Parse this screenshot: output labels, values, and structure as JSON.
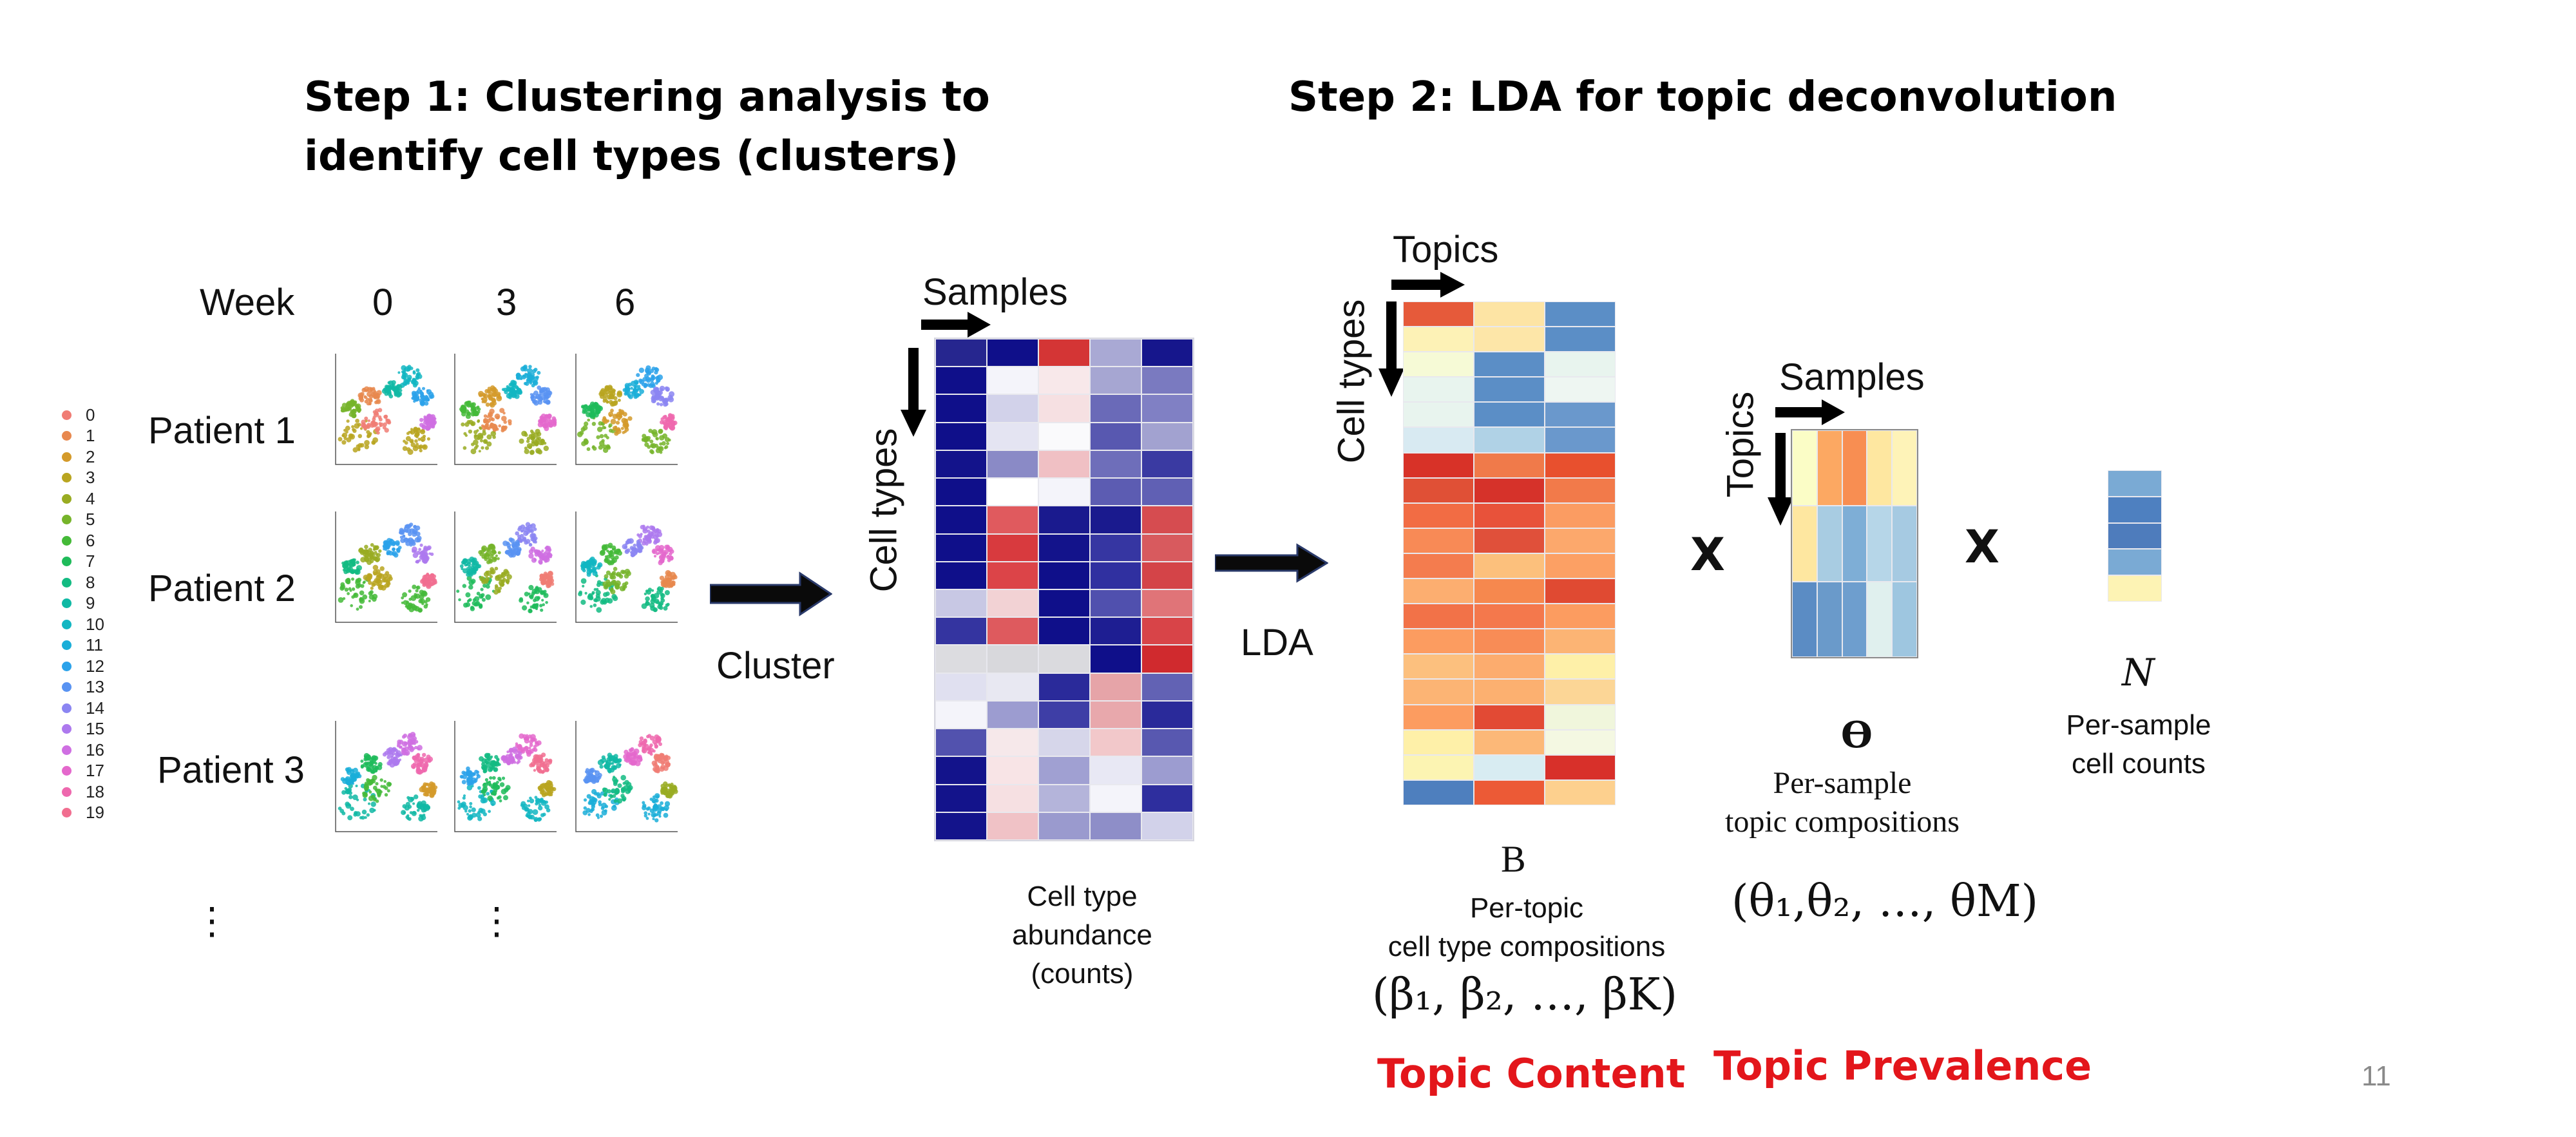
{
  "step1_title_line1": "Step 1: Clustering analysis to",
  "step1_title_line2": "identify cell types (clusters)",
  "step2_title": "Step 2: LDA for topic deconvolution",
  "week_label": "Week",
  "weeks": [
    "0",
    "3",
    "6"
  ],
  "patients": [
    "Patient 1",
    "Patient 2",
    "Patient 3"
  ],
  "ellipsis": "⋮",
  "legend": [
    {
      "label": "0",
      "color": "#f07c74"
    },
    {
      "label": "1",
      "color": "#e8884e"
    },
    {
      "label": "2",
      "color": "#d49a2a"
    },
    {
      "label": "3",
      "color": "#b9a520"
    },
    {
      "label": "4",
      "color": "#99ac22"
    },
    {
      "label": "5",
      "color": "#76b42a"
    },
    {
      "label": "6",
      "color": "#44ba38"
    },
    {
      "label": "7",
      "color": "#1fbb5a"
    },
    {
      "label": "8",
      "color": "#13bb82"
    },
    {
      "label": "9",
      "color": "#10b9a4"
    },
    {
      "label": "10",
      "color": "#12b6c2"
    },
    {
      "label": "11",
      "color": "#1aaed8"
    },
    {
      "label": "12",
      "color": "#2ba2ea"
    },
    {
      "label": "13",
      "color": "#5993f2"
    },
    {
      "label": "14",
      "color": "#8b85f2"
    },
    {
      "label": "15",
      "color": "#ad79ee"
    },
    {
      "label": "16",
      "color": "#cf6fe2"
    },
    {
      "label": "17",
      "color": "#e468cc"
    },
    {
      "label": "18",
      "color": "#ee68ae"
    },
    {
      "label": "19",
      "color": "#f16e90"
    }
  ],
  "cluster_label": "Cluster",
  "lda_label": "LDA",
  "samples_label": "Samples",
  "cell_types_label": "Cell types",
  "topics_label": "Topics",
  "abundance_caption": [
    "Cell type",
    "abundance",
    "(counts)"
  ],
  "beta_symbol": "B",
  "beta_caption": [
    "Per-topic",
    "cell type compositions"
  ],
  "beta_formula": "(β₁, β₂, …, βK)",
  "theta_symbol": "ϴ",
  "theta_caption": [
    "Per-sample",
    "topic  compositions"
  ],
  "theta_formula": "(θ₁,θ₂, …, θM)",
  "n_symbol": "N",
  "n_caption": [
    "Per-sample",
    "cell counts"
  ],
  "times1": "X",
  "times2": "X",
  "topic_content": "Topic Content",
  "topic_prevalence": "Topic Prevalence",
  "page_number": "11",
  "abundance_colors": [
    [
      "#26268f",
      "#0f0f8a",
      "#d43535",
      "#a9a9d4",
      "#16168c"
    ],
    [
      "#0f0f8a",
      "#f4f4fa",
      "#f8e8ea",
      "#a6a6d2",
      "#7a7ac0"
    ],
    [
      "#0f0f8a",
      "#d2d2ea",
      "#f6e0e2",
      "#6a6ab8",
      "#8080c4"
    ],
    [
      "#0f0f8a",
      "#e4e4f2",
      "#fafafc",
      "#5858b0",
      "#a2a2d0"
    ],
    [
      "#13138b",
      "#8a8ac6",
      "#f0c0c4",
      "#6e6eba",
      "#3a3aa2"
    ],
    [
      "#0f0f8a",
      "#ffffff",
      "#f4f4fa",
      "#5c5cb2",
      "#6060b4"
    ],
    [
      "#0f0f8a",
      "#e05a5e",
      "#1a1a8e",
      "#1a1a8e",
      "#d64c50"
    ],
    [
      "#0f0f8a",
      "#d83a3e",
      "#13138b",
      "#3636a2",
      "#d85a5e"
    ],
    [
      "#0f0f8a",
      "#dc4448",
      "#0f0f8a",
      "#3030a0",
      "#d44448"
    ],
    [
      "#c8c8e4",
      "#f2d2d4",
      "#0f0f8a",
      "#5050ae",
      "#e07478"
    ],
    [
      "#3434a0",
      "#de5a5e",
      "#0f0f8a",
      "#1e1e92",
      "#d84448"
    ],
    [
      "#dcdce0",
      "#d8d8dc",
      "#dadade",
      "#0f0f8a",
      "#d02a2e"
    ],
    [
      "#e0e0f0",
      "#e8e8f2",
      "#2a2a9a",
      "#e6a4a8",
      "#6262b4"
    ],
    [
      "#f4f4fa",
      "#9c9cd0",
      "#3e3ea6",
      "#e8a8ac",
      "#2a2a9a"
    ],
    [
      "#5252ae",
      "#f6e8ea",
      "#d6d6ea",
      "#f2c8ca",
      "#5858b0"
    ],
    [
      "#13138b",
      "#f8e4e6",
      "#a0a0d2",
      "#e8e8f4",
      "#9c9cd0"
    ],
    [
      "#13138b",
      "#f6e0e2",
      "#b4b4da",
      "#f4f4fa",
      "#2e2e9e"
    ],
    [
      "#13138b",
      "#f0c2c6",
      "#9a9ace",
      "#8e8ec8",
      "#d2d2ea"
    ]
  ],
  "beta_colors": [
    [
      "#e65a3a",
      "#fde4a4",
      "#5b8ec6"
    ],
    [
      "#fdf2b6",
      "#fde6a8",
      "#5b8ec6"
    ],
    [
      "#f6fad6",
      "#5b8ec6",
      "#e8f4ee"
    ],
    [
      "#e8f4ee",
      "#5b8ec6",
      "#eef6f2"
    ],
    [
      "#e8f4ee",
      "#5b8ec6",
      "#6a98cc"
    ],
    [
      "#d8eaf2",
      "#b0d2e6",
      "#6a98cc"
    ],
    [
      "#d83228",
      "#f07a4a",
      "#e8502e"
    ],
    [
      "#e05036",
      "#d6322a",
      "#f27a4a"
    ],
    [
      "#f26c44",
      "#e8523a",
      "#fb9c62"
    ],
    [
      "#f88a56",
      "#e0503a",
      "#fca86c"
    ],
    [
      "#f47c4e",
      "#fcc07c",
      "#fca064"
    ],
    [
      "#fcae70",
      "#f6884e",
      "#e04a32"
    ],
    [
      "#f27248",
      "#f4784c",
      "#fc9c60"
    ],
    [
      "#fc9c60",
      "#f88c56",
      "#fcb474"
    ],
    [
      "#fcc07e",
      "#fcac6e",
      "#fef0a8"
    ],
    [
      "#fcb474",
      "#fcb070",
      "#fcd696"
    ],
    [
      "#fc9c60",
      "#e24a34",
      "#f0f6dc"
    ],
    [
      "#fef0a8",
      "#fcb878",
      "#f4f8e2"
    ],
    [
      "#fcf4b2",
      "#d8ecf2",
      "#d8302a"
    ],
    [
      "#4e7fbe",
      "#ec5a36",
      "#fdd08e"
    ]
  ],
  "theta_colors": [
    [
      "#fbfdc6",
      "#fca862",
      "#f88e52",
      "#fee7a0",
      "#fef3b8"
    ],
    [
      "#fee7a0",
      "#a8cce2",
      "#7eaed6",
      "#b6d6e8",
      "#a6cae2"
    ],
    [
      "#5b8cc4",
      "#6a9aca",
      "#6e9ece",
      "#e0f0ee",
      "#9ec6e0"
    ]
  ],
  "n_colors": [
    "#7aaad4",
    "#4e80c0",
    "#4e7cbc",
    "#7aaad4",
    "#fdf3b4"
  ]
}
